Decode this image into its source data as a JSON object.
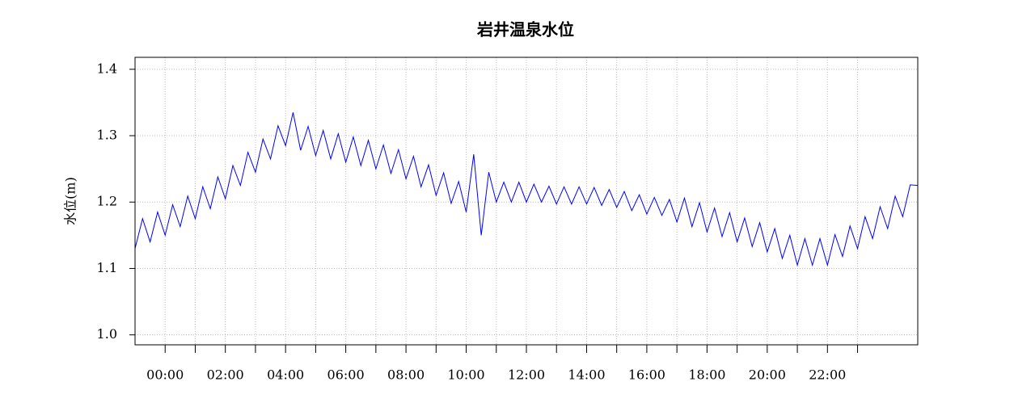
{
  "chart_data": {
    "type": "line",
    "title": "岩井温泉水位",
    "y_label": "水位(m)",
    "x": [
      -1,
      -0.75,
      -0.5,
      -0.25,
      0,
      0.25,
      0.5,
      0.75,
      1,
      1.25,
      1.5,
      1.75,
      2,
      2.25,
      2.5,
      2.75,
      3,
      3.25,
      3.5,
      3.75,
      4,
      4.25,
      4.5,
      4.75,
      5,
      5.25,
      5.5,
      5.75,
      6,
      6.25,
      6.5,
      6.75,
      7,
      7.25,
      7.5,
      7.75,
      8,
      8.25,
      8.5,
      8.75,
      9,
      9.25,
      9.5,
      9.75,
      10,
      10.25,
      10.5,
      10.75,
      11,
      11.25,
      11.5,
      11.75,
      12,
      12.25,
      12.5,
      12.75,
      13,
      13.25,
      13.5,
      13.75,
      14,
      14.25,
      14.5,
      14.75,
      15,
      15.25,
      15.5,
      15.75,
      16,
      16.25,
      16.5,
      16.75,
      17,
      17.25,
      17.5,
      17.75,
      18,
      18.25,
      18.5,
      18.75,
      19,
      19.25,
      19.5,
      19.75,
      20,
      20.25,
      20.5,
      20.75,
      21,
      21.25,
      21.5,
      21.75,
      22,
      22.25,
      22.5,
      22.75,
      23,
      23.25,
      23.5,
      23.75,
      24,
      24.25,
      24.5,
      24.75,
      25
    ],
    "series": [
      {
        "color": "#0000ff",
        "values": [
          1.13,
          1.175,
          1.14,
          1.185,
          1.15,
          1.196,
          1.163,
          1.209,
          1.175,
          1.223,
          1.19,
          1.238,
          1.205,
          1.255,
          1.225,
          1.275,
          1.245,
          1.295,
          1.265,
          1.315,
          1.285,
          1.335,
          1.278,
          1.314,
          1.27,
          1.308,
          1.265,
          1.303,
          1.26,
          1.298,
          1.255,
          1.293,
          1.25,
          1.286,
          1.243,
          1.279,
          1.235,
          1.269,
          1.223,
          1.256,
          1.21,
          1.244,
          1.198,
          1.231,
          1.185,
          1.272,
          1.15,
          1.245,
          1.2,
          1.23,
          1.2,
          1.23,
          1.2,
          1.227,
          1.2,
          1.224,
          1.197,
          1.223,
          1.197,
          1.223,
          1.197,
          1.222,
          1.195,
          1.219,
          1.192,
          1.216,
          1.187,
          1.211,
          1.182,
          1.207,
          1.18,
          1.204,
          1.17,
          1.206,
          1.163,
          1.199,
          1.155,
          1.191,
          1.148,
          1.184,
          1.14,
          1.176,
          1.133,
          1.169,
          1.125,
          1.16,
          1.115,
          1.15,
          1.105,
          1.145,
          1.105,
          1.145,
          1.105,
          1.151,
          1.118,
          1.164,
          1.13,
          1.178,
          1.145,
          1.193,
          1.16,
          1.209,
          1.178,
          1.226,
          1.225
        ]
      }
    ],
    "xlim": [
      -1,
      25
    ],
    "ylim": [
      0.985,
      1.418
    ],
    "xticks": [
      {
        "value": 0,
        "label": "00:00"
      },
      {
        "value": 2,
        "label": "02:00"
      },
      {
        "value": 4,
        "label": "04:00"
      },
      {
        "value": 6,
        "label": "06:00"
      },
      {
        "value": 8,
        "label": "08:00"
      },
      {
        "value": 10,
        "label": "10:00"
      },
      {
        "value": 12,
        "label": "12:00"
      },
      {
        "value": 14,
        "label": "14:00"
      },
      {
        "value": 16,
        "label": "16:00"
      },
      {
        "value": 18,
        "label": "18:00"
      },
      {
        "value": 20,
        "label": "20:00"
      },
      {
        "value": 22,
        "label": "22:00"
      }
    ],
    "xminorticks": [
      1,
      3,
      5,
      7,
      9,
      11,
      13,
      15,
      17,
      19,
      21,
      23
    ],
    "yticks": [
      {
        "value": 1,
        "label": "1.0"
      },
      1.1,
      1.2,
      1.3,
      1.4
    ],
    "grid": true
  }
}
